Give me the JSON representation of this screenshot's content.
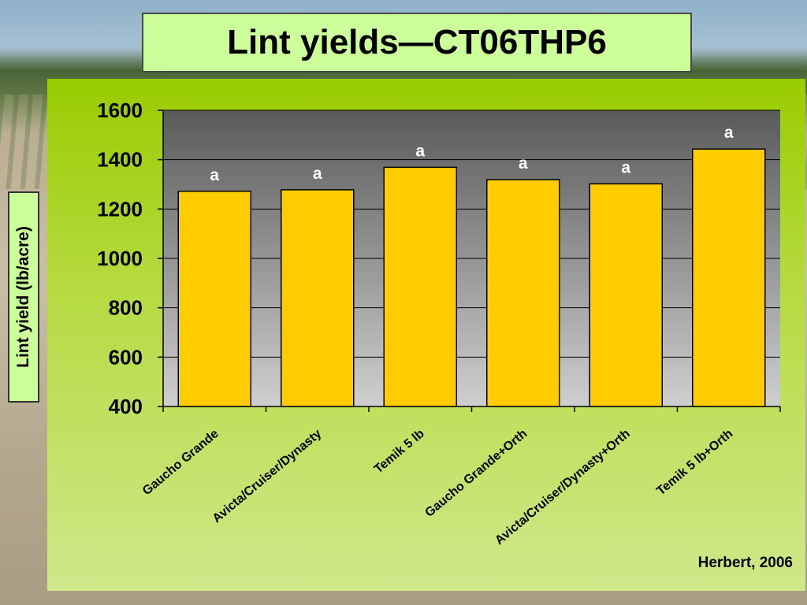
{
  "title": "Lint yields—CT06THP6",
  "credit": "Herbert, 2006",
  "chart_data": {
    "type": "bar",
    "ylabel": "Lint yield (lb/acre)",
    "ylim": [
      400,
      1600
    ],
    "yticks": [
      400,
      600,
      800,
      1000,
      1200,
      1400,
      1600
    ],
    "categories": [
      "Gaucho Grande",
      "Avicta/Cruiser/Dynasty",
      "Temik 5 lb",
      "Gaucho Grande+Orth",
      "Avicta/Cruiser/Dynasty+Orth",
      "Temik 5 lb+Orth"
    ],
    "values": [
      1272,
      1278,
      1369,
      1319,
      1302,
      1443
    ],
    "annotations": [
      "a",
      "a",
      "a",
      "a",
      "a",
      "a"
    ],
    "grid": true,
    "colors": {
      "bar": "#ffcc00",
      "plot_top": "#5a5a5a",
      "plot_bottom": "#cfcfcf",
      "annotation": "#ffffff"
    }
  }
}
